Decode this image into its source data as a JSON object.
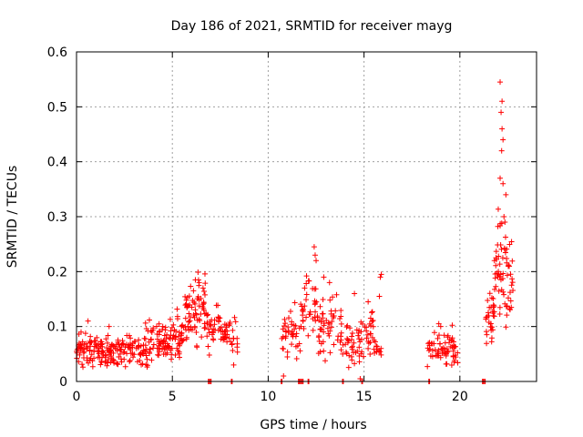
{
  "chart_data": {
    "type": "scatter",
    "title": "Day 186 of 2021, SRMTID for receiver mayg",
    "xlabel": "GPS time / hours",
    "ylabel": "SRMTID / TECUs",
    "xlim": [
      0,
      24
    ],
    "ylim": [
      0,
      0.6
    ],
    "x_ticks": [
      0,
      5,
      10,
      15,
      20
    ],
    "x_tick_labels": [
      "0",
      "5",
      "10",
      "15",
      "20"
    ],
    "y_ticks": [
      0,
      0.1,
      0.2,
      0.3,
      0.4,
      0.5,
      0.6
    ],
    "y_tick_labels": [
      "0",
      "0.1",
      "0.2",
      "0.3",
      "0.4",
      "0.5",
      "0.6"
    ],
    "grid": true,
    "marker": "plus",
    "series_color": "#ff0000",
    "grid_color": "#a0a0a0",
    "activity_windows": [
      {
        "start": 0.0,
        "end": 1.4,
        "center": 0.06,
        "spread": 0.025,
        "count": 80
      },
      {
        "start": 1.4,
        "end": 3.6,
        "center": 0.055,
        "spread": 0.025,
        "count": 110
      },
      {
        "start": 3.6,
        "end": 5.0,
        "center": 0.07,
        "spread": 0.03,
        "count": 80
      },
      {
        "start": 5.0,
        "end": 5.6,
        "center": 0.085,
        "spread": 0.035,
        "count": 35
      },
      {
        "start": 5.6,
        "end": 6.8,
        "center": 0.13,
        "spread": 0.045,
        "count": 70
      },
      {
        "start": 6.8,
        "end": 7.6,
        "center": 0.1,
        "spread": 0.035,
        "count": 35
      },
      {
        "start": 7.6,
        "end": 8.4,
        "center": 0.08,
        "spread": 0.03,
        "count": 35
      },
      {
        "start": 10.7,
        "end": 11.7,
        "center": 0.1,
        "spread": 0.04,
        "count": 40
      },
      {
        "start": 11.7,
        "end": 12.6,
        "center": 0.13,
        "spread": 0.05,
        "count": 35
      },
      {
        "start": 12.6,
        "end": 13.8,
        "center": 0.1,
        "spread": 0.05,
        "count": 50
      },
      {
        "start": 13.8,
        "end": 14.8,
        "center": 0.07,
        "spread": 0.035,
        "count": 40
      },
      {
        "start": 14.8,
        "end": 15.5,
        "center": 0.1,
        "spread": 0.04,
        "count": 30
      },
      {
        "start": 15.5,
        "end": 15.9,
        "center": 0.06,
        "spread": 0.02,
        "count": 14
      },
      {
        "start": 18.3,
        "end": 19.9,
        "center": 0.06,
        "spread": 0.025,
        "count": 70
      },
      {
        "start": 21.3,
        "end": 21.8,
        "center": 0.12,
        "spread": 0.045,
        "count": 30
      },
      {
        "start": 21.8,
        "end": 22.3,
        "center": 0.22,
        "spread": 0.09,
        "count": 35
      },
      {
        "start": 22.3,
        "end": 22.8,
        "center": 0.18,
        "spread": 0.08,
        "count": 30
      }
    ],
    "points": [
      [
        22.1,
        0.545
      ],
      [
        22.2,
        0.51
      ],
      [
        22.15,
        0.49
      ],
      [
        22.2,
        0.46
      ],
      [
        22.25,
        0.44
      ],
      [
        22.18,
        0.42
      ],
      [
        22.1,
        0.37
      ],
      [
        22.25,
        0.36
      ],
      [
        22.4,
        0.34
      ],
      [
        22.3,
        0.3
      ],
      [
        22.35,
        0.29
      ],
      [
        12.4,
        0.245
      ],
      [
        12.45,
        0.23
      ],
      [
        12.5,
        0.22
      ],
      [
        15.9,
        0.195
      ],
      [
        15.85,
        0.19
      ],
      [
        12.9,
        0.19
      ],
      [
        13.2,
        0.18
      ],
      [
        6.4,
        0.18
      ],
      [
        6.2,
        0.185
      ],
      [
        6.6,
        0.17
      ],
      [
        11.9,
        0.17
      ],
      [
        14.5,
        0.16
      ],
      [
        15.8,
        0.155
      ],
      [
        8.2,
        0.03
      ],
      [
        10.8,
        0.01
      ],
      [
        14.8,
        0.005
      ],
      [
        0.6,
        0.11
      ],
      [
        1.7,
        0.1
      ],
      [
        4.5,
        0.1
      ],
      [
        19.0,
        0.1
      ],
      [
        18.9,
        0.105
      ]
    ],
    "zero_points": [
      6.9,
      7.0,
      8.1,
      10.7,
      11.6,
      11.7,
      11.8,
      12.1,
      13.9,
      14.9,
      18.4,
      21.2,
      21.3
    ]
  }
}
